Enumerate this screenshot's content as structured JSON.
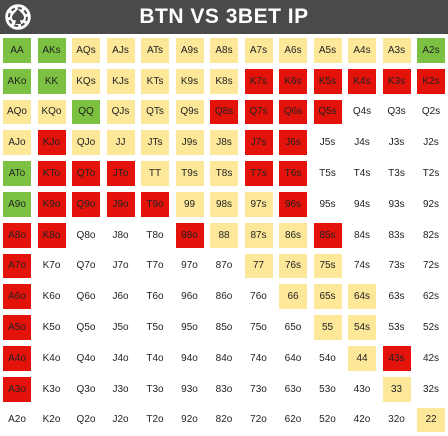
{
  "title": "BTN VS 3BET IP",
  "logo_icon": "spade-chip-logo-icon",
  "colors": {
    "yellow": "#fde89a",
    "green": "#7cc142",
    "red": "#e3120b",
    "light": "#ffffff",
    "header": "#4a4a4a"
  },
  "hands": [
    [
      "AA",
      "AKs",
      "AQs",
      "AJs",
      "ATs",
      "A9s",
      "A8s",
      "A7s",
      "A6s",
      "A5s",
      "A4s",
      "A3s",
      "A2s"
    ],
    [
      "AKo",
      "KK",
      "KQs",
      "KJs",
      "KTs",
      "K9s",
      "K8s",
      "K7s",
      "K6s",
      "K5s",
      "K4s",
      "K3s",
      "K2s"
    ],
    [
      "AQo",
      "KQo",
      "QQ",
      "QJs",
      "QTs",
      "Q9s",
      "Q8s",
      "Q7s",
      "Q6s",
      "Q5s",
      "Q4s",
      "Q3s",
      "Q2s"
    ],
    [
      "AJo",
      "KJo",
      "QJo",
      "JJ",
      "JTs",
      "J9s",
      "J8s",
      "J7s",
      "J6s",
      "J5s",
      "J4s",
      "J3s",
      "J2s"
    ],
    [
      "ATo",
      "KTo",
      "QTo",
      "JTo",
      "TT",
      "T9s",
      "T8s",
      "T7s",
      "T6s",
      "T5s",
      "T4s",
      "T3s",
      "T2s"
    ],
    [
      "A9o",
      "K9o",
      "Q9o",
      "J9o",
      "T9o",
      "99",
      "98s",
      "97s",
      "96s",
      "95s",
      "94s",
      "93s",
      "92s"
    ],
    [
      "A8o",
      "K8o",
      "Q8o",
      "J8o",
      "T8o",
      "98o",
      "88",
      "87s",
      "86s",
      "85s",
      "84s",
      "83s",
      "82s"
    ],
    [
      "A7o",
      "K7o",
      "Q7o",
      "J7o",
      "T7o",
      "97o",
      "87o",
      "77",
      "76s",
      "75s",
      "74s",
      "73s",
      "72s"
    ],
    [
      "A6o",
      "K6o",
      "Q6o",
      "J6o",
      "T6o",
      "96o",
      "86o",
      "76o",
      "66",
      "65s",
      "64s",
      "63s",
      "62s"
    ],
    [
      "A5o",
      "K5o",
      "Q5o",
      "J5o",
      "T5o",
      "95o",
      "85o",
      "75o",
      "65o",
      "55",
      "54s",
      "53s",
      "52s"
    ],
    [
      "A4o",
      "K4o",
      "Q4o",
      "J4o",
      "T4o",
      "94o",
      "84o",
      "74o",
      "64o",
      "54o",
      "44",
      "43s",
      "42s"
    ],
    [
      "A3o",
      "K3o",
      "Q3o",
      "J3o",
      "T3o",
      "93o",
      "83o",
      "73o",
      "63o",
      "53o",
      "43o",
      "33",
      "32s"
    ],
    [
      "A2o",
      "K2o",
      "Q2o",
      "J2o",
      "T2o",
      "92o",
      "82o",
      "72o",
      "62o",
      "52o",
      "42o",
      "32o",
      "22"
    ]
  ],
  "actions": [
    [
      "G",
      "G",
      "Y",
      "Y",
      "Y",
      "Y",
      "Y",
      "Y",
      "Y",
      "Y",
      "Y",
      "Y",
      "G"
    ],
    [
      "G",
      "G",
      "Y",
      "Y",
      "Y",
      "Y",
      "Y",
      "R",
      "R",
      "R",
      "R",
      "R",
      "R"
    ],
    [
      "Y",
      "Y",
      "G",
      "Y",
      "Y",
      "Y",
      "R",
      "R",
      "R",
      "R",
      "W",
      "W",
      "W"
    ],
    [
      "Y",
      "R",
      "Y",
      "Y",
      "Y",
      "Y",
      "Y",
      "R",
      "R",
      "W",
      "W",
      "W",
      "W"
    ],
    [
      "G",
      "R",
      "R",
      "R",
      "Y",
      "Y",
      "Y",
      "R",
      "R",
      "W",
      "W",
      "W",
      "W"
    ],
    [
      "G",
      "R",
      "R",
      "R",
      "R",
      "Y",
      "Y",
      "Y",
      "R",
      "W",
      "W",
      "W",
      "W"
    ],
    [
      "R",
      "R",
      "W",
      "W",
      "W",
      "R",
      "Y",
      "Y",
      "Y",
      "R",
      "W",
      "W",
      "W"
    ],
    [
      "R",
      "W",
      "W",
      "W",
      "W",
      "W",
      "W",
      "Y",
      "Y",
      "Y",
      "W",
      "W",
      "W"
    ],
    [
      "R",
      "W",
      "W",
      "W",
      "W",
      "W",
      "W",
      "W",
      "Y",
      "Y",
      "Y",
      "W",
      "W"
    ],
    [
      "R",
      "W",
      "W",
      "W",
      "W",
      "W",
      "W",
      "W",
      "W",
      "Y",
      "Y",
      "W",
      "W"
    ],
    [
      "R",
      "W",
      "W",
      "W",
      "W",
      "W",
      "W",
      "W",
      "W",
      "W",
      "Y",
      "R",
      "W"
    ],
    [
      "R",
      "W",
      "W",
      "W",
      "W",
      "W",
      "W",
      "W",
      "W",
      "W",
      "W",
      "Y",
      "W"
    ],
    [
      "W",
      "W",
      "W",
      "W",
      "W",
      "W",
      "W",
      "W",
      "W",
      "W",
      "W",
      "W",
      "Y"
    ]
  ]
}
